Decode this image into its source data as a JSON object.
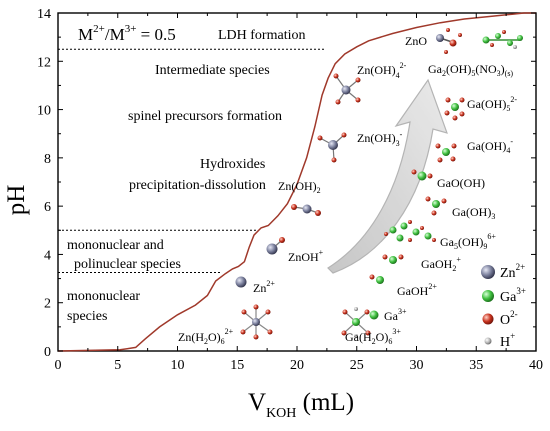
{
  "chart_data": {
    "type": "line",
    "xlabel": "V",
    "xlabel_sub": "KOH",
    "xlabel_unit": " (mL)",
    "ylabel": "pH",
    "xlim": [
      0,
      40
    ],
    "ylim": [
      0,
      14
    ],
    "x_ticks": [
      0,
      5,
      10,
      15,
      20,
      25,
      30,
      35,
      40
    ],
    "y_ticks": [
      0,
      2,
      4,
      6,
      8,
      10,
      12,
      14
    ],
    "series": [
      {
        "x": [
          0,
          5.2,
          6.5,
          7.3,
          8.5,
          10,
          11.5,
          12.5,
          13.2,
          14,
          14.6,
          15.1,
          15.6,
          16.0,
          16.4,
          17.0,
          17.6,
          18.4,
          19.2,
          20.0,
          20.8,
          21.5,
          22.1,
          22.6,
          23.2,
          24.0,
          25.0,
          26.0,
          27.0,
          28.0,
          30.0,
          32.0,
          34.0,
          36.0,
          38.0,
          39.0,
          40.0
        ],
        "y": [
          0.0,
          0.05,
          0.15,
          0.5,
          1.0,
          1.5,
          1.9,
          2.3,
          2.9,
          3.2,
          3.4,
          3.5,
          3.7,
          4.3,
          4.8,
          5.1,
          5.2,
          5.6,
          6.1,
          6.9,
          8.0,
          9.3,
          10.6,
          11.3,
          11.9,
          12.3,
          12.6,
          12.85,
          13.0,
          13.15,
          13.4,
          13.6,
          13.75,
          13.85,
          13.95,
          14.0,
          14.0
        ]
      }
    ],
    "dotted_levels": [
      {
        "y": 12.5,
        "x_end": 22.3
      },
      {
        "y": 5.0,
        "x_end": 16.6
      },
      {
        "y": 3.25,
        "x_end": 13.6
      }
    ],
    "annotations": {
      "ratio": "M",
      "ratio_sup1": "2+",
      "ratio_mid": "/M",
      "ratio_sup2": "3+",
      "ratio_tail": " = 0.5",
      "ldh": "LDH formation",
      "intermediate": "Intermediate species",
      "spinel": "spinel precursors formation",
      "hydroxides_1": "Hydroxides",
      "hydroxides_2": "precipitation-dissolution",
      "mononuclear_poly_1": "mononuclear and",
      "mononuclear_poly_2": "polinuclear species",
      "mononuclear_1": "mononuclear",
      "mononuclear_2": "species"
    },
    "species_labels": {
      "zno": "ZnO",
      "zn_oh4": "Zn(OH)",
      "zn_oh3": "Zn(OH)",
      "zn_oh2": "Zn(OH)",
      "zn_oh_plus": "ZnOH",
      "zn2": "Zn",
      "zn_h2o6": "Zn(H",
      "ga2oh5no3": "Ga",
      "ga_oh5": "Ga(OH)",
      "ga_oh4": "Ga(OH)",
      "gaooh": "GaO(OH)",
      "ga_oh3": "Ga(OH)",
      "ga5oh9": "Ga",
      "gaoh2": "GaOH",
      "gaoh": "GaOH",
      "ga3": "Ga",
      "ga_h2o6": "Ga(H"
    },
    "legend": [
      {
        "label": "Zn",
        "charge": "2+",
        "color": "#7a7f9c"
      },
      {
        "label": "Ga",
        "charge": "3+",
        "color": "#3fbf3f"
      },
      {
        "label": "O",
        "charge": "2-",
        "color": "#c8321e"
      },
      {
        "label": "H",
        "charge": "+",
        "color": "#b8b8b8"
      }
    ],
    "colors": {
      "curve": "#a0392b",
      "arrow": "#c8c8c8"
    }
  }
}
